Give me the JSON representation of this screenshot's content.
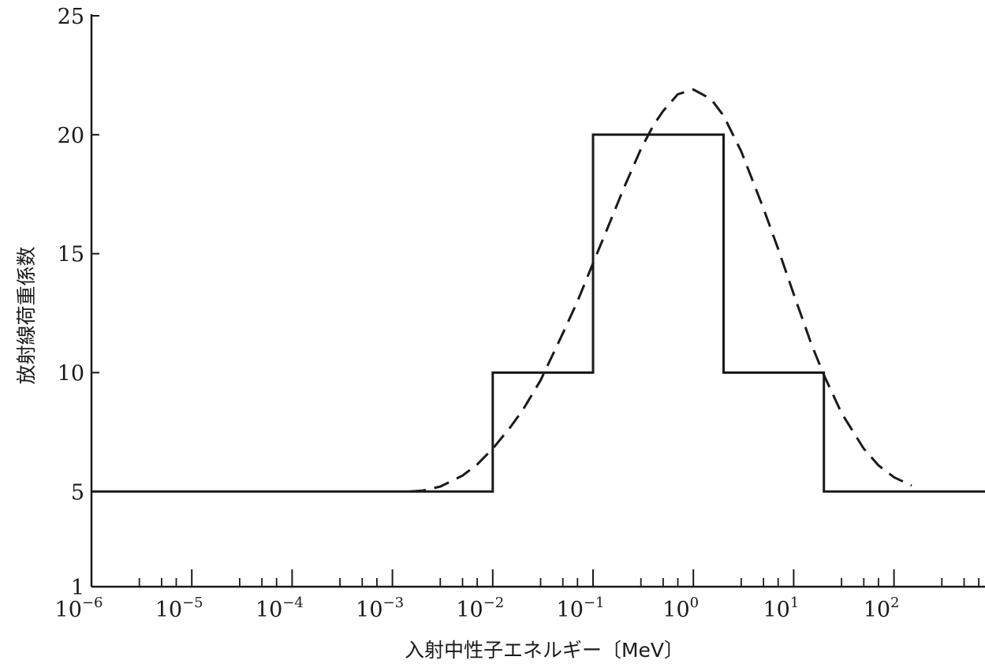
{
  "chart_data": {
    "type": "line",
    "title": "",
    "xlabel": "入射中性子エネルギー〔MeV〕",
    "ylabel": "放射線荷重係数",
    "x_scale": "log",
    "xlim": [
      1e-06,
      1000
    ],
    "ylim": [
      1,
      25
    ],
    "x_ticks": [
      {
        "value": 1e-06,
        "base": "10",
        "exp": "−6"
      },
      {
        "value": 1e-05,
        "base": "10",
        "exp": "−5"
      },
      {
        "value": 0.0001,
        "base": "10",
        "exp": "−4"
      },
      {
        "value": 0.001,
        "base": "10",
        "exp": "−3"
      },
      {
        "value": 0.01,
        "base": "10",
        "exp": "−2"
      },
      {
        "value": 0.1,
        "base": "10",
        "exp": "−1"
      },
      {
        "value": 1,
        "base": "10",
        "exp": "0"
      },
      {
        "value": 10,
        "base": "10",
        "exp": "1"
      },
      {
        "value": 100,
        "base": "10",
        "exp": "2"
      }
    ],
    "y_ticks": [
      {
        "value": 1,
        "label": "1"
      },
      {
        "value": 5,
        "label": "5"
      },
      {
        "value": 10,
        "label": "10"
      },
      {
        "value": 15,
        "label": "15"
      },
      {
        "value": 20,
        "label": "20"
      },
      {
        "value": 25,
        "label": "25"
      }
    ],
    "grid": false,
    "legend": "none",
    "series": [
      {
        "style": "solid-step",
        "x": [
          1e-06,
          0.01,
          0.01,
          0.1,
          0.1,
          2,
          2,
          20,
          20,
          1000
        ],
        "y": [
          5,
          5,
          10,
          10,
          20,
          20,
          10,
          10,
          5,
          5
        ]
      },
      {
        "style": "dashed",
        "x": [
          0.0015,
          0.002,
          0.003,
          0.005,
          0.007,
          0.01,
          0.015,
          0.02,
          0.03,
          0.05,
          0.07,
          0.1,
          0.15,
          0.2,
          0.3,
          0.4,
          0.5,
          0.7,
          1,
          1.5,
          2,
          3,
          5,
          7,
          10,
          15,
          20,
          30,
          50,
          70,
          100,
          150
        ],
        "y": [
          5.0,
          5.04,
          5.21,
          5.67,
          6.14,
          6.8,
          7.71,
          8.44,
          9.68,
          11.65,
          13.0,
          14.6,
          16.4,
          17.7,
          19.4,
          20.4,
          21.0,
          21.7,
          21.9,
          21.5,
          20.8,
          19.3,
          16.9,
          15.2,
          13.3,
          11.2,
          9.9,
          8.3,
          6.8,
          6.1,
          5.6,
          5.25
        ]
      }
    ]
  }
}
